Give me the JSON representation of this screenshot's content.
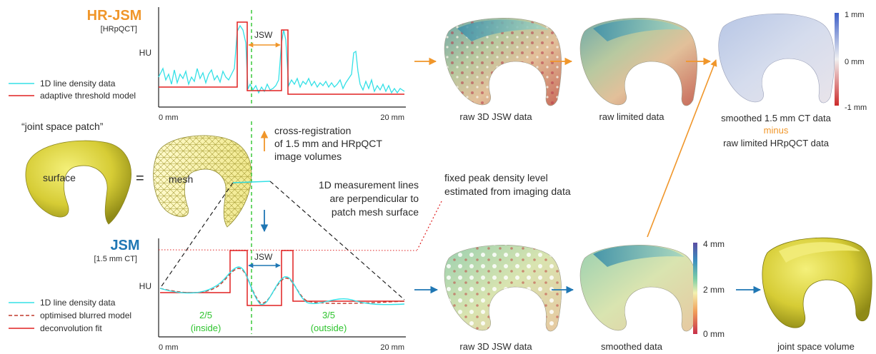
{
  "top_panel": {
    "title": "HR-JSM",
    "subtitle": "[HRpQCT]",
    "ylabel": "HU",
    "x_start": "0 mm",
    "x_end": "20 mm",
    "jsw_label": "JSW",
    "legend": [
      "1D line density data",
      "adaptive threshold model"
    ]
  },
  "bottom_panel": {
    "title": "JSM",
    "subtitle": "[1.5 mm CT]",
    "ylabel": "HU",
    "x_start": "0 mm",
    "x_end": "20 mm",
    "jsw_label": "JSW",
    "inside_fraction": "2/5",
    "inside_label": "(inside)",
    "outside_fraction": "3/5",
    "outside_label": "(outside)",
    "legend": [
      "1D line density data",
      "optimised blurred model",
      "deconvolution fit"
    ]
  },
  "left": {
    "patch_label": "“joint space patch”",
    "surface_label": "surface",
    "equals": "=",
    "mesh_label": "mesh"
  },
  "annotations": {
    "cross_registration": [
      "cross-registration",
      "of 1.5 mm and HRpQCT",
      "image volumes"
    ],
    "measurement_lines": [
      "1D measurement lines",
      "are perpendicular to",
      "patch mesh surface"
    ],
    "peak_density": [
      "fixed peak density level",
      "estimated from imaging data"
    ]
  },
  "top_row_captions": {
    "raw_3d": "raw 3D JSW data",
    "raw_limited": "raw limited data",
    "smoothed": "smoothed 1.5 mm CT data",
    "minus": "minus",
    "raw_limited_hr": "raw limited HRpQCT data"
  },
  "bottom_row_captions": {
    "raw_3d": "raw 3D JSW data",
    "smoothed": "smoothed data",
    "volume": "joint space volume"
  },
  "colorbar_diff": {
    "max": "1 mm",
    "mid": "0 mm",
    "min": "-1 mm"
  },
  "colorbar_jsw": {
    "max": "4 mm",
    "mid": "2 mm",
    "min": "0 mm"
  },
  "colors": {
    "orange": "#f0962a",
    "blue": "#1f77b4",
    "cyan": "#33e0e6",
    "red": "#e02020",
    "green": "#2ec42e"
  }
}
